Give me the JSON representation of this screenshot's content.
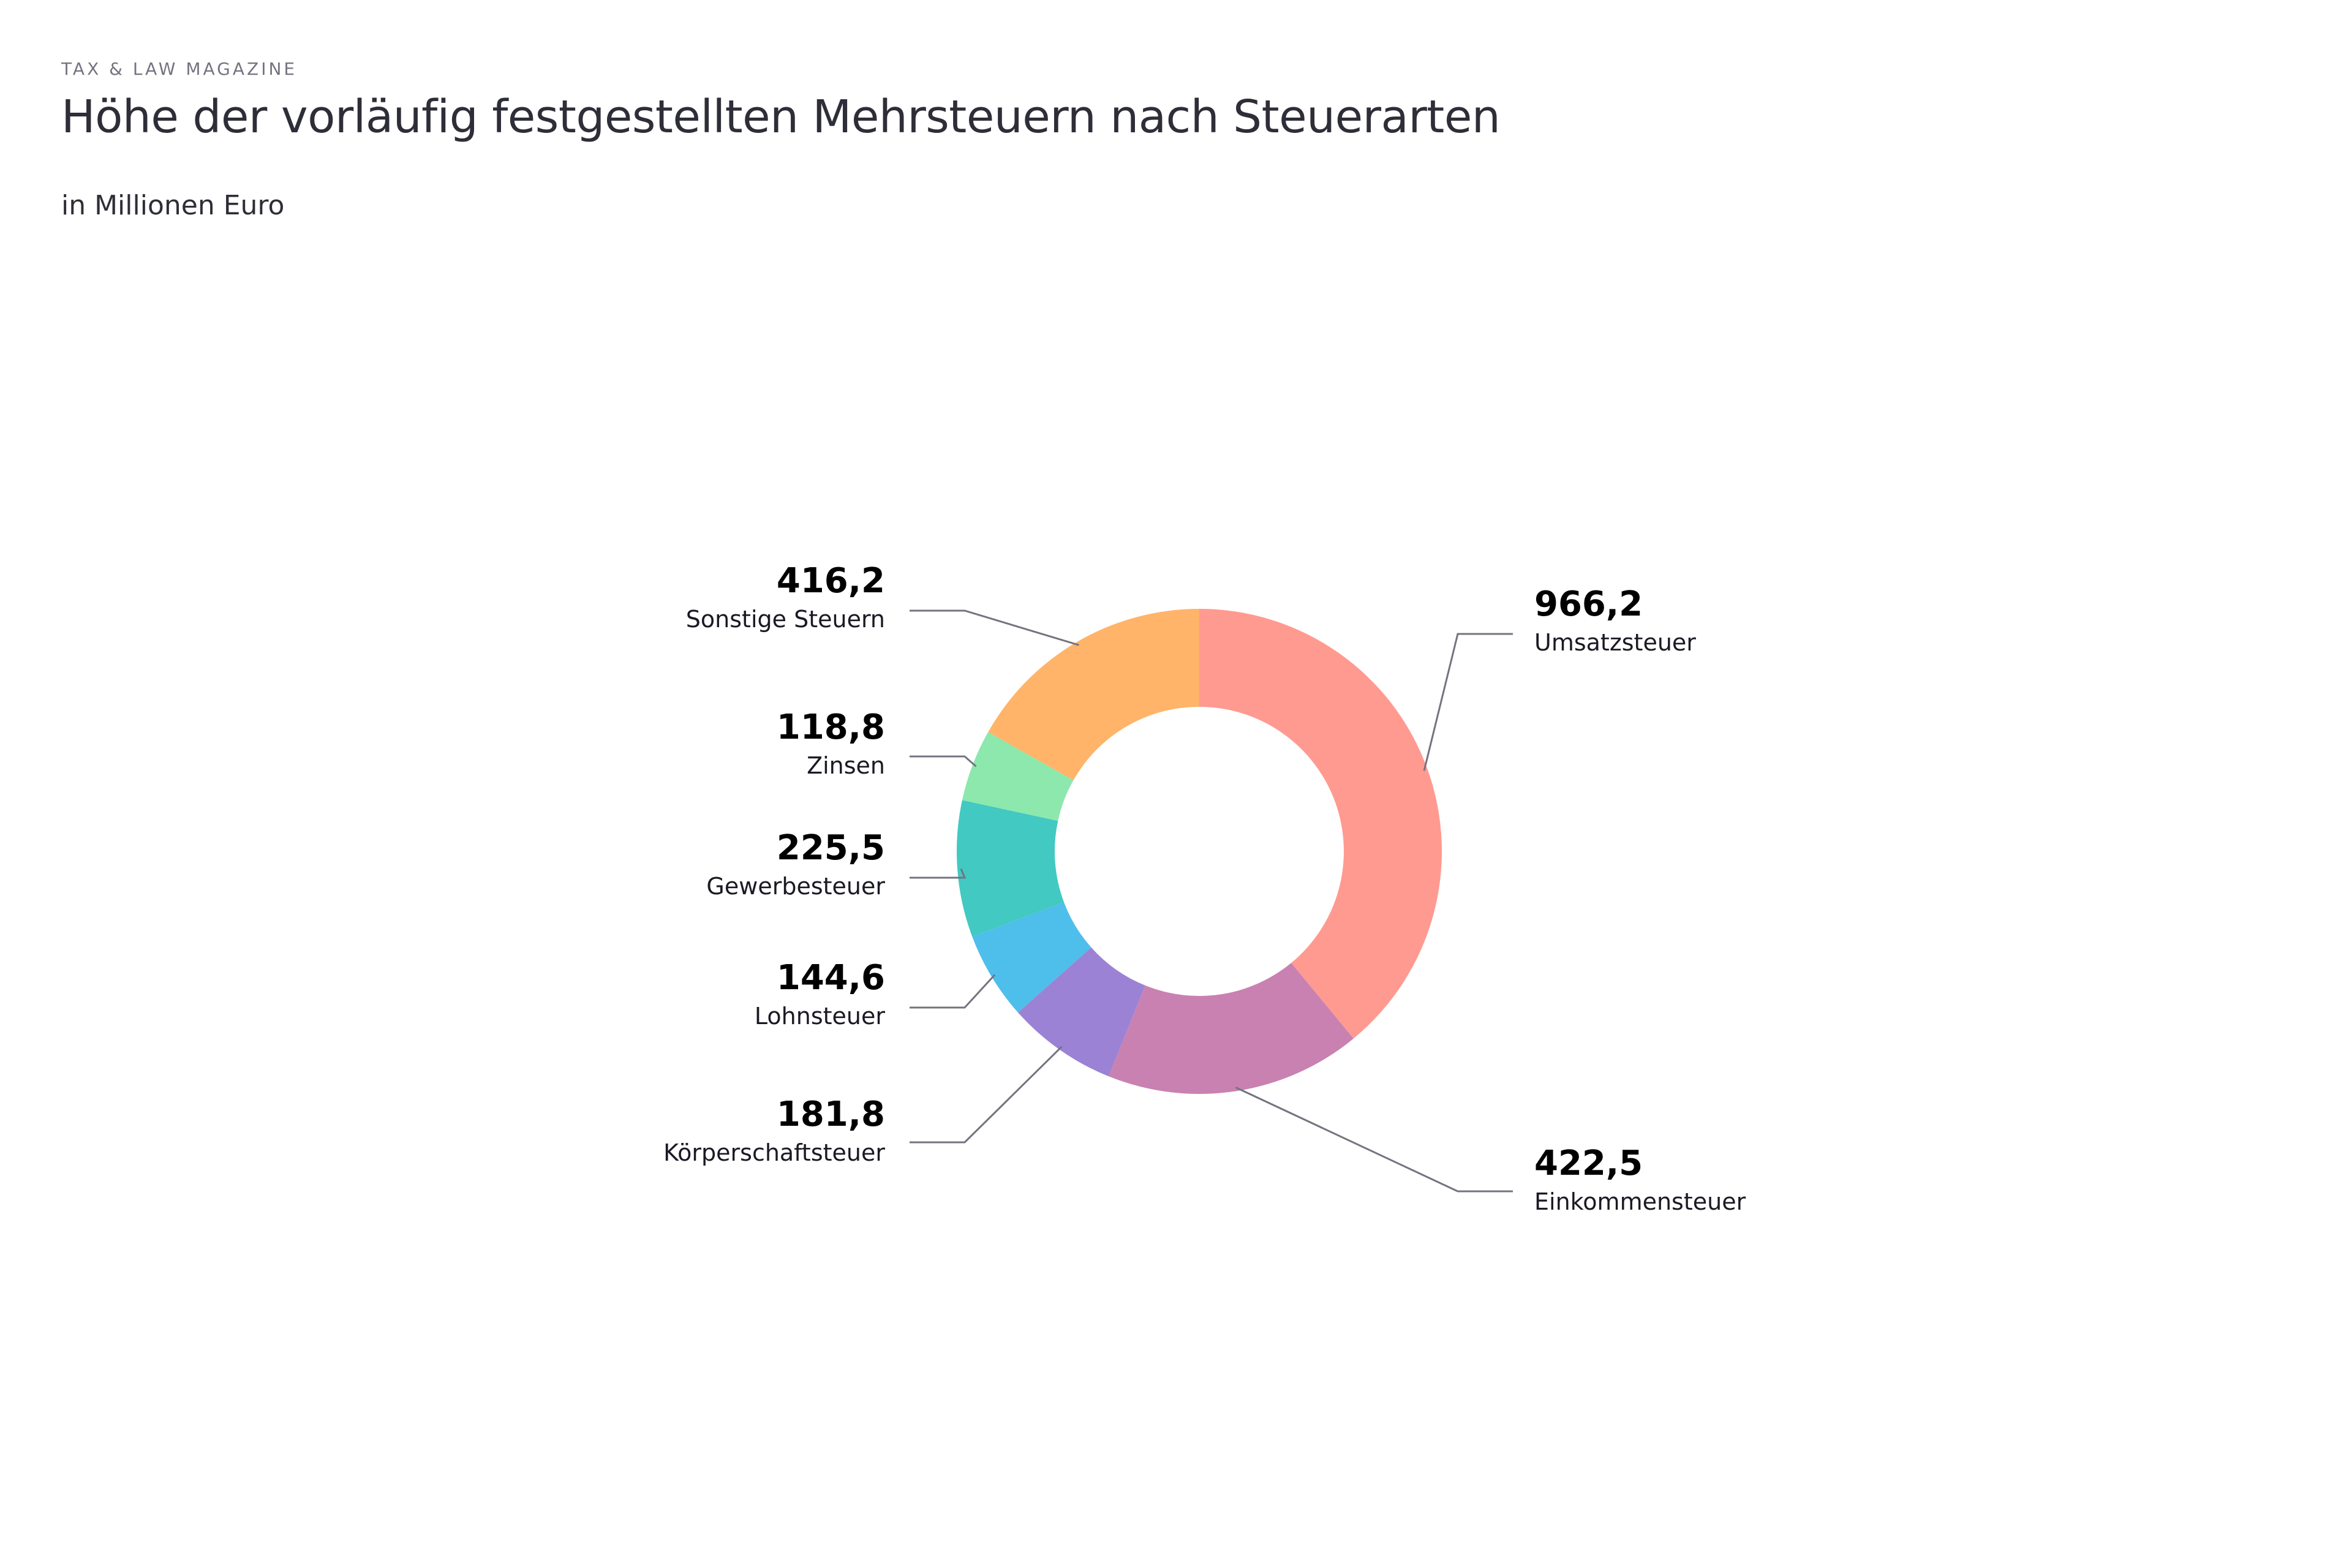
{
  "header": {
    "kicker": "TAX & LAW MAGAZINE",
    "title": "Höhe der vorläufig festgestellten Mehrsteuern nach Steuerarten",
    "subtitle": "in Millionen Euro"
  },
  "chart_data": {
    "type": "pie",
    "variant": "donut",
    "title": "Höhe der vorläufig festgestellten Mehrsteuern nach Steuerarten",
    "subtitle": "in Millionen Euro",
    "slices": [
      {
        "label": "Umsatzsteuer",
        "value": 966.2,
        "display": "966,2",
        "color": "#ff9a91"
      },
      {
        "label": "Einkommensteuer",
        "value": 422.5,
        "display": "422,5",
        "color": "#c981b2"
      },
      {
        "label": "Körperschaftsteuer",
        "value": 181.8,
        "display": "181,8",
        "color": "#9c82d4"
      },
      {
        "label": "Lohnsteuer",
        "value": 144.6,
        "display": "144,6",
        "color": "#4ebeeb"
      },
      {
        "label": "Gewerbesteuer",
        "value": 225.5,
        "display": "225,5",
        "color": "#42c9c2"
      },
      {
        "label": "Zinsen",
        "value": 118.8,
        "display": "118,8",
        "color": "#8ce8ad"
      },
      {
        "label": "Sonstige Steuern",
        "value": 416.2,
        "display": "416,2",
        "color": "#ffb46a"
      }
    ],
    "legend": "none"
  }
}
